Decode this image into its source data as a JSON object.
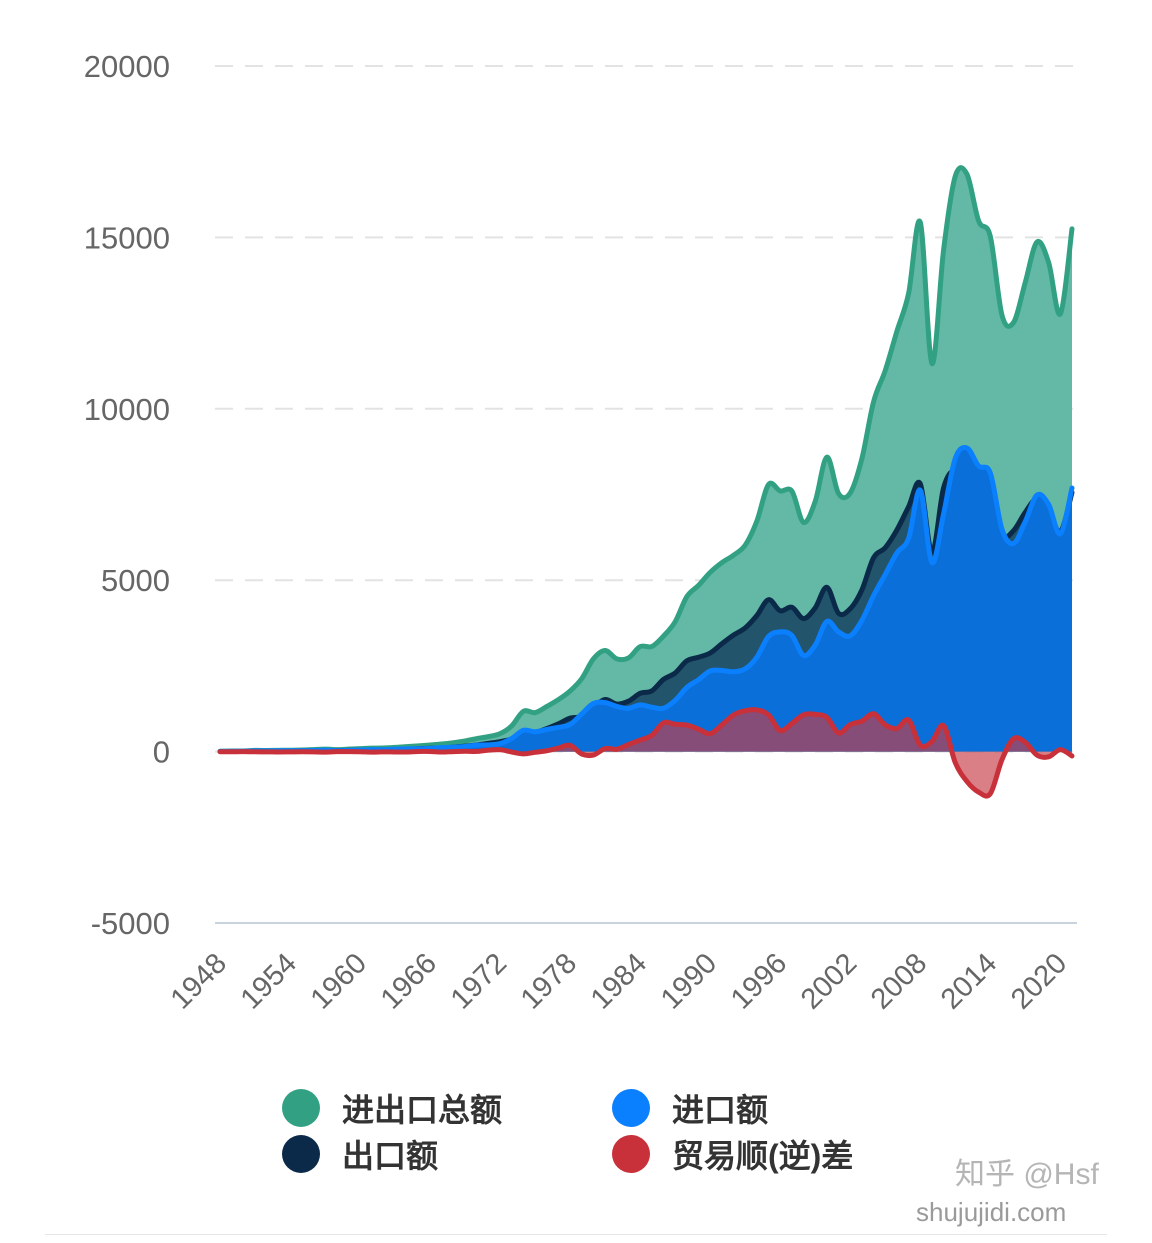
{
  "chart_data": {
    "type": "area",
    "x": [
      1948,
      1949,
      1950,
      1951,
      1952,
      1953,
      1954,
      1955,
      1956,
      1957,
      1958,
      1959,
      1960,
      1961,
      1962,
      1963,
      1964,
      1965,
      1966,
      1967,
      1968,
      1969,
      1970,
      1971,
      1972,
      1973,
      1974,
      1975,
      1976,
      1977,
      1978,
      1979,
      1980,
      1981,
      1982,
      1983,
      1984,
      1985,
      1986,
      1987,
      1988,
      1989,
      1990,
      1991,
      1992,
      1993,
      1994,
      1995,
      1996,
      1997,
      1998,
      1999,
      2000,
      2001,
      2002,
      2003,
      2004,
      2005,
      2006,
      2007,
      2008,
      2009,
      2010,
      2011,
      2012,
      2013,
      2014,
      2015,
      2016,
      2017,
      2018,
      2019,
      2020,
      2021
    ],
    "x_tick_labels": [
      "1948",
      "1954",
      "1960",
      "1966",
      "1972",
      "1978",
      "1984",
      "1990",
      "1996",
      "2002",
      "2008",
      "2014",
      "2020"
    ],
    "y_tick_labels": [
      "20000",
      "15000",
      "10000",
      "5000",
      "0",
      "-5000"
    ],
    "ylim": [
      -5000,
      20000
    ],
    "grid": true,
    "legend_position": "bottom",
    "series": [
      {
        "name": "进出口总额",
        "color": "#32a183",
        "fill": "#63b9a6",
        "values": [
          10,
          14,
          18,
          34,
          33,
          37,
          40,
          45,
          57,
          72,
          59,
          71,
          86,
          100,
          105,
          122,
          146,
          167,
          193,
          221,
          260,
          310,
          381,
          437,
          524,
          753,
          1177,
          1137,
          1317,
          1517,
          1769,
          2131,
          2709,
          2950,
          2705,
          2732,
          3064,
          3066,
          3371,
          3788,
          4520,
          4848,
          5228,
          5513,
          5729,
          6023,
          6726,
          7790,
          7603,
          7598,
          6686,
          7302,
          8589,
          7527,
          7545,
          8549,
          10206,
          11118,
          12264,
          13365,
          15439,
          11321,
          14640,
          16787,
          16844,
          15482,
          15030,
          12733,
          12521,
          13695,
          14865,
          14265,
          12768,
          15250
        ]
      },
      {
        "name": "出口额",
        "color": "#0b2a4a",
        "fill": "#22546b",
        "values": [
          3,
          5,
          8,
          14,
          13,
          13,
          16,
          20,
          25,
          29,
          29,
          35,
          41,
          42,
          49,
          55,
          67,
          85,
          98,
          104,
          130,
          160,
          193,
          240,
          290,
          370,
          555,
          558,
          671,
          810,
          976,
          1030,
          1304,
          1520,
          1387,
          1470,
          1700,
          1771,
          2107,
          2293,
          2647,
          2752,
          2876,
          3147,
          3399,
          3608,
          3971,
          4431,
          4109,
          4210,
          3880,
          4194,
          4793,
          4035,
          4167,
          4719,
          5655,
          5949,
          6468,
          7143,
          7813,
          5808,
          7698,
          8232,
          7986,
          7150,
          6902,
          6249,
          6449,
          6982,
          7381,
          7056,
          6413,
          7561
        ]
      },
      {
        "name": "进口额",
        "color": "#0a80ff",
        "fill": "#0a6fd8",
        "values": [
          7,
          9,
          10,
          20,
          20,
          24,
          24,
          25,
          32,
          43,
          30,
          36,
          45,
          58,
          56,
          67,
          79,
          82,
          95,
          117,
          130,
          150,
          188,
          197,
          234,
          383,
          622,
          579,
          646,
          707,
          793,
          1101,
          1405,
          1430,
          1318,
          1262,
          1364,
          1295,
          1264,
          1495,
          1873,
          2096,
          2352,
          2366,
          2330,
          2415,
          2755,
          3359,
          3494,
          3388,
          2806,
          3108,
          3796,
          3492,
          3378,
          3830,
          4551,
          5169,
          5796,
          6222,
          7626,
          5513,
          6942,
          8555,
          8858,
          8332,
          8128,
          6484,
          6072,
          6713,
          7484,
          7209,
          6355,
          7689
        ]
      },
      {
        "name": "贸易顺(逆)差",
        "color": "#c8303a",
        "fill": "#c83a45",
        "values": [
          -4,
          -4,
          -2,
          -6,
          -7,
          -11,
          -8,
          -5,
          -7,
          -14,
          -1,
          -1,
          -4,
          -16,
          -7,
          -12,
          -12,
          3,
          3,
          -13,
          0,
          10,
          5,
          43,
          56,
          -13,
          -67,
          -21,
          25,
          103,
          183,
          -71,
          -101,
          90,
          69,
          208,
          336,
          476,
          843,
          798,
          774,
          656,
          524,
          781,
          1069,
          1193,
          1216,
          1072,
          615,
          822,
          1074,
          1086,
          997,
          543,
          789,
          889,
          1104,
          780,
          672,
          921,
          187,
          295,
          756,
          -323,
          -872,
          -1182,
          -1226,
          -235,
          377,
          269,
          -103,
          -153,
          58,
          -128
        ]
      }
    ]
  },
  "watermark": {
    "brand": "知乎 @Hsf",
    "site": "shujujidi.com"
  }
}
